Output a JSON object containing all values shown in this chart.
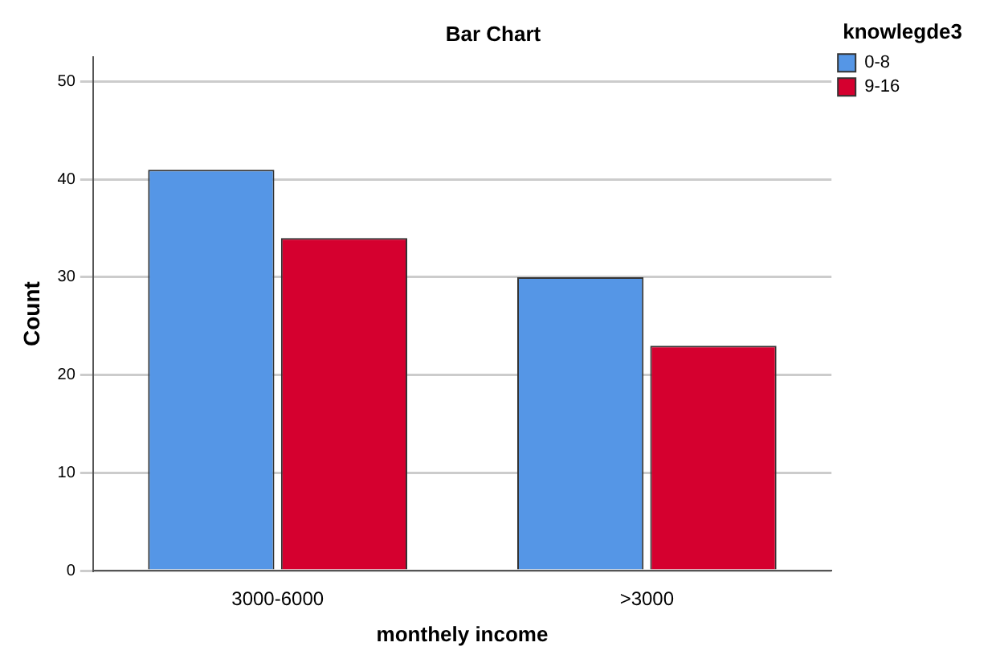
{
  "chart_data": {
    "type": "bar",
    "title": "Bar Chart",
    "xlabel": "monthely income",
    "ylabel": "Count",
    "legend_title": "knowlegde3",
    "categories": [
      "3000-6000",
      ">3000"
    ],
    "series": [
      {
        "name": "0-8",
        "color": "#5596e6",
        "values": [
          41,
          30
        ]
      },
      {
        "name": "9-16",
        "color": "#d5002f",
        "values": [
          34,
          23
        ]
      }
    ],
    "ylim": [
      0,
      52.5
    ],
    "yticks": [
      0,
      10,
      20,
      30,
      40,
      50
    ],
    "grid": "y",
    "legend": "top right"
  }
}
